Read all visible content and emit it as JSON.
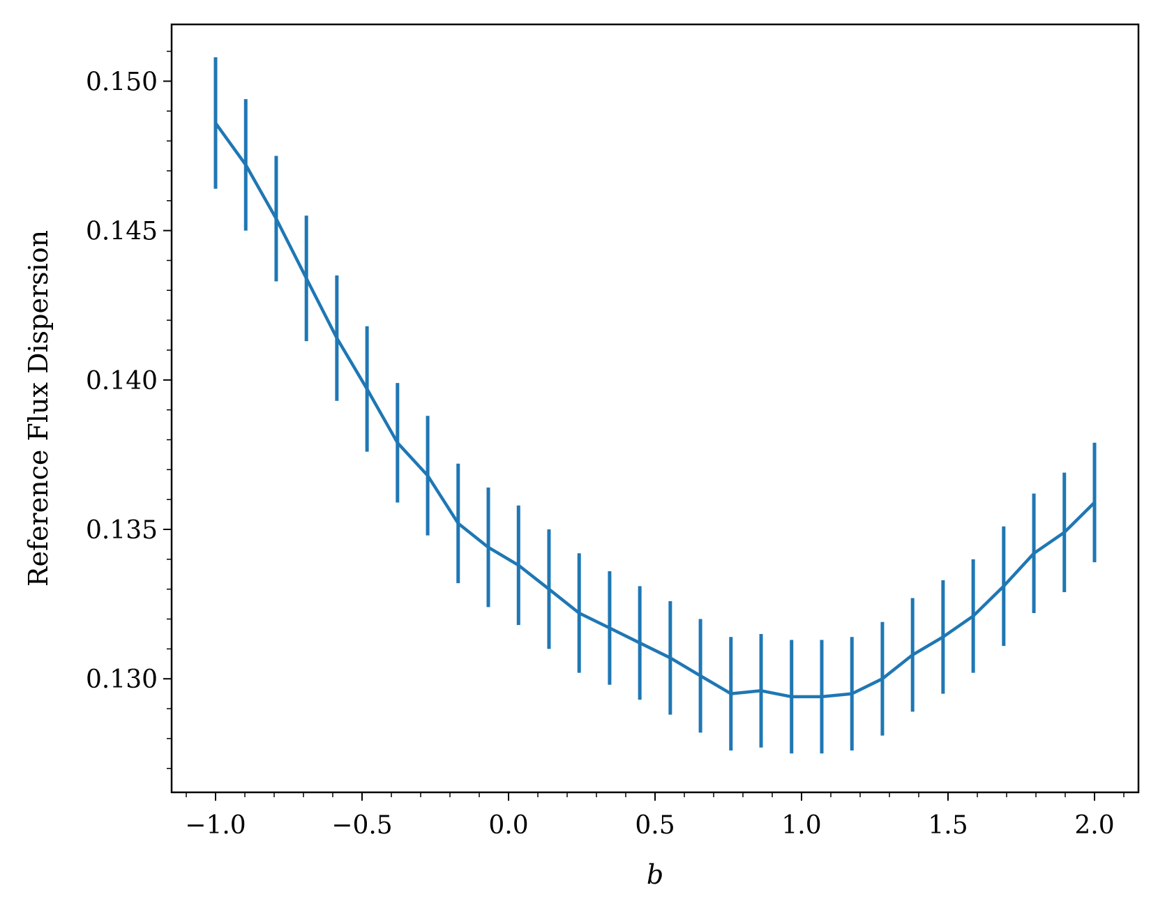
{
  "chart_data": {
    "type": "line",
    "title": "",
    "xlabel": "b",
    "ylabel": "Reference Flux Dispersion",
    "xlim": [
      -1.15,
      2.15
    ],
    "ylim": [
      0.1262,
      0.1519
    ],
    "xticks": [
      -1.0,
      -0.5,
      0.0,
      0.5,
      1.0,
      1.5,
      2.0
    ],
    "xtick_labels": [
      "−1.0",
      "−0.5",
      "0.0",
      "0.5",
      "1.0",
      "1.5",
      "2.0"
    ],
    "yticks": [
      0.13,
      0.135,
      0.14,
      0.145,
      0.15
    ],
    "ytick_labels": [
      "0.130",
      "0.135",
      "0.140",
      "0.145",
      "0.150"
    ],
    "minor_xticks": true,
    "minor_yticks": true,
    "grid": false,
    "legend": "none",
    "color": "#1f77b4",
    "series": [
      {
        "x": [
          -1.0,
          -0.897,
          -0.793,
          -0.69,
          -0.586,
          -0.483,
          -0.379,
          -0.276,
          -0.172,
          -0.069,
          0.034,
          0.138,
          0.241,
          0.345,
          0.448,
          0.552,
          0.655,
          0.759,
          0.862,
          0.966,
          1.069,
          1.172,
          1.276,
          1.379,
          1.483,
          1.586,
          1.69,
          1.793,
          1.897,
          2.0
        ],
        "y": [
          0.1486,
          0.1472,
          0.1454,
          0.1434,
          0.1414,
          0.1397,
          0.1379,
          0.1368,
          0.1352,
          0.1344,
          0.1338,
          0.133,
          0.1322,
          0.1317,
          0.1312,
          0.1307,
          0.1301,
          0.1295,
          0.1296,
          0.1294,
          0.1294,
          0.1295,
          0.13,
          0.1308,
          0.1314,
          0.1321,
          0.1331,
          0.1342,
          0.1349,
          0.1359
        ],
        "yerr": [
          0.0022,
          0.0022,
          0.0021,
          0.0021,
          0.0021,
          0.0021,
          0.002,
          0.002,
          0.002,
          0.002,
          0.002,
          0.002,
          0.002,
          0.0019,
          0.0019,
          0.0019,
          0.0019,
          0.0019,
          0.0019,
          0.0019,
          0.0019,
          0.0019,
          0.0019,
          0.0019,
          0.0019,
          0.0019,
          0.002,
          0.002,
          0.002,
          0.002
        ]
      }
    ]
  }
}
